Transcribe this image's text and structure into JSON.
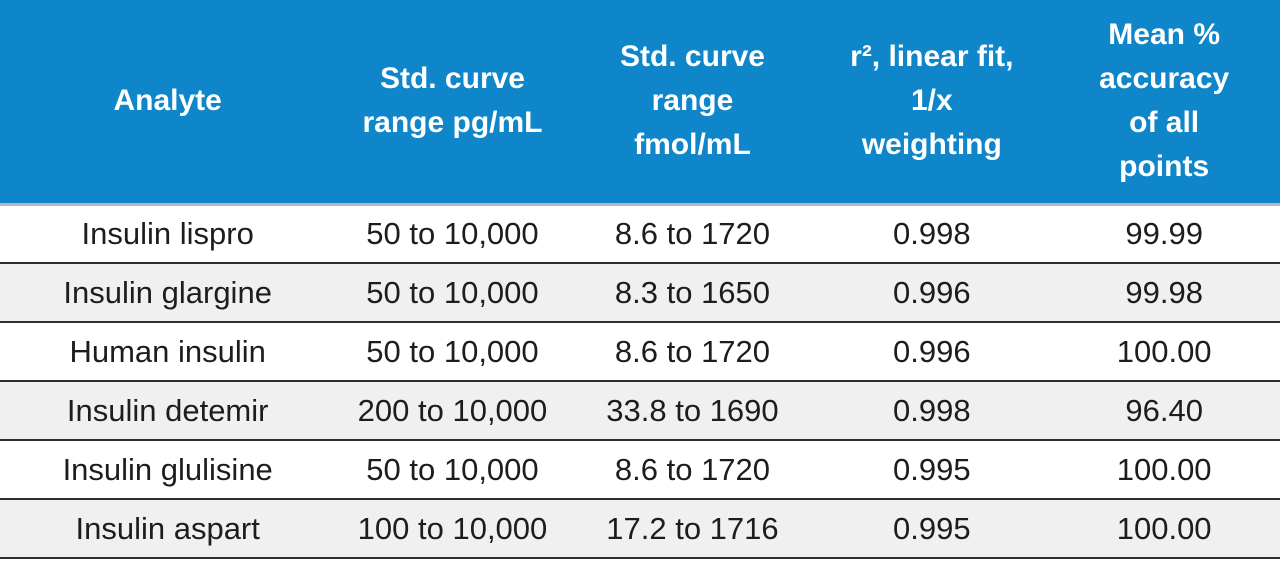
{
  "colors": {
    "header-bg": "#0e86c9",
    "header-text": "#ffffff",
    "header-divider": "#b3babd",
    "row-stripe": "#f0f0f1",
    "row-plain": "#ffffff",
    "divider": "#2e2e2e",
    "body-text": "#1d1d1d",
    "page-bg": "#ffffff"
  },
  "table": {
    "columns": [
      {
        "label": "Analyte"
      },
      {
        "label": "Std. curve\nrange pg/mL"
      },
      {
        "label": "Std. curve\nrange\nfmol/mL"
      },
      {
        "label": "r², linear fit,\n1/x\nweighting"
      },
      {
        "label": "Mean %\naccuracy\nof all\npoints"
      }
    ],
    "rows": [
      {
        "cells": [
          "Insulin lispro",
          "50 to 10,000",
          "8.6 to 1720",
          "0.998",
          "99.99"
        ]
      },
      {
        "cells": [
          "Insulin glargine",
          "50 to 10,000",
          "8.3 to 1650",
          "0.996",
          "99.98"
        ]
      },
      {
        "cells": [
          "Human insulin",
          "50 to 10,000",
          "8.6 to 1720",
          "0.996",
          "100.00"
        ]
      },
      {
        "cells": [
          "Insulin detemir",
          "200 to 10,000",
          "33.8 to 1690",
          "0.998",
          "96.40"
        ]
      },
      {
        "cells": [
          "Insulin glulisine",
          "50 to 10,000",
          "8.6 to 1720",
          "0.995",
          "100.00"
        ]
      },
      {
        "cells": [
          "Insulin aspart",
          "100 to 10,000",
          "17.2 to 1716",
          "0.995",
          "100.00"
        ]
      }
    ]
  }
}
